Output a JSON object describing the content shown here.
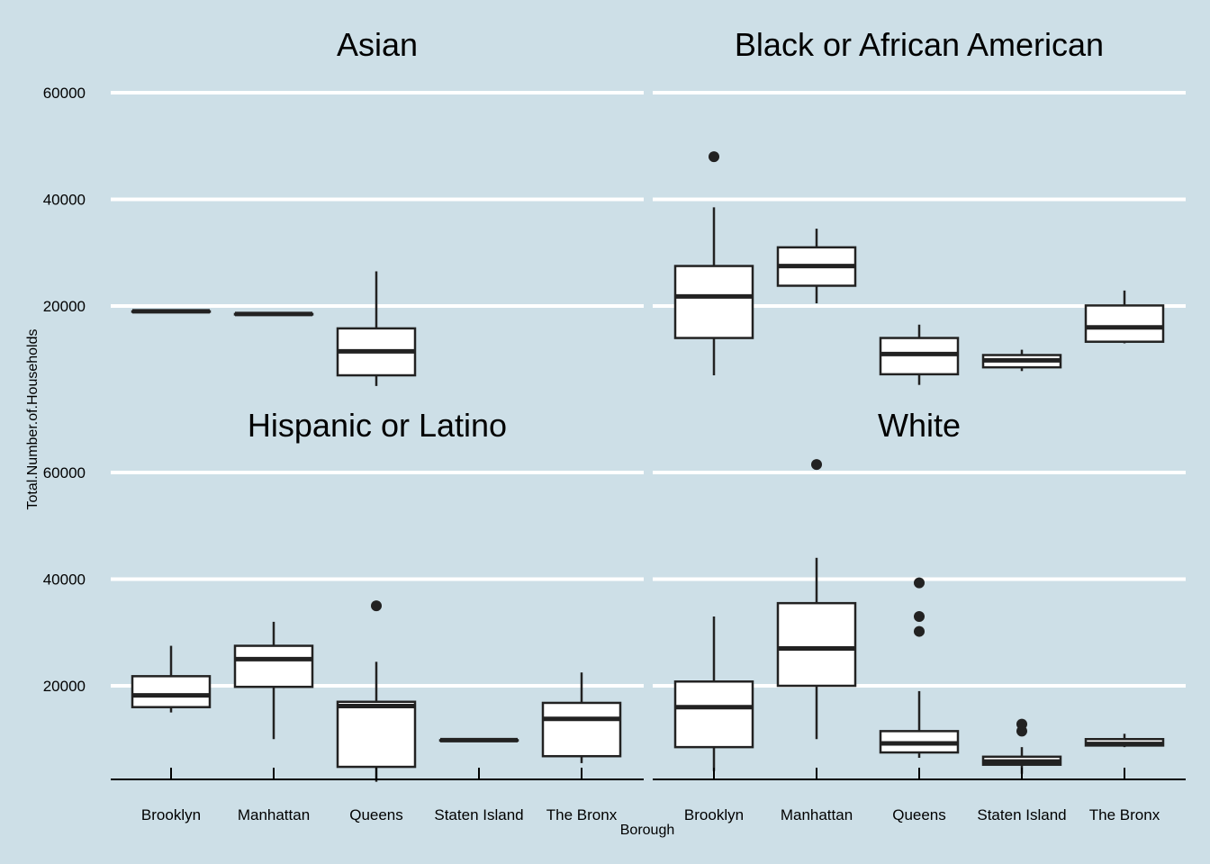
{
  "chart_data": {
    "type": "boxplot",
    "xlabel": "Borough",
    "ylabel": "Total.Number.of.Households",
    "categories": [
      "Brooklyn",
      "Manhattan",
      "Queens",
      "Staten Island",
      "The Bronx"
    ],
    "y_ticks": [
      20000,
      40000,
      60000
    ],
    "y_tick_labels": [
      "20000",
      "40000",
      "60000"
    ],
    "grid": "major y",
    "colors": {
      "background": "#cddfe7",
      "box_fill": "#ffffff",
      "box_stroke": "#222222",
      "grid": "#ffffff"
    },
    "panels": [
      {
        "title": "Asian",
        "boxes": [
          {
            "category": "Brooklyn",
            "min": 19000,
            "q1": 19000,
            "median": 19000,
            "q3": 19000,
            "max": 19000,
            "outliers": []
          },
          {
            "category": "Manhattan",
            "min": 18500,
            "q1": 18500,
            "median": 18500,
            "q3": 18500,
            "max": 18500,
            "outliers": []
          },
          {
            "category": "Queens",
            "min": 5000,
            "q1": 7000,
            "median": 11500,
            "q3": 15800,
            "max": 26500,
            "outliers": []
          }
        ]
      },
      {
        "title": "Black or African American",
        "boxes": [
          {
            "category": "Brooklyn",
            "min": 7000,
            "q1": 14000,
            "median": 21800,
            "q3": 27500,
            "max": 38500,
            "outliers": [
              48000
            ]
          },
          {
            "category": "Manhattan",
            "min": 20500,
            "q1": 23800,
            "median": 27500,
            "q3": 31000,
            "max": 34500,
            "outliers": []
          },
          {
            "category": "Queens",
            "min": 5200,
            "q1": 7200,
            "median": 11000,
            "q3": 14000,
            "max": 16500,
            "outliers": []
          },
          {
            "category": "Staten Island",
            "min": 7800,
            "q1": 8500,
            "median": 9800,
            "q3": 10800,
            "max": 11800,
            "outliers": []
          },
          {
            "category": "The Bronx",
            "min": 13000,
            "q1": 13300,
            "median": 16000,
            "q3": 20100,
            "max": 22900,
            "outliers": []
          }
        ]
      },
      {
        "title": "Hispanic or Latino",
        "boxes": [
          {
            "category": "Brooklyn",
            "min": 15000,
            "q1": 16000,
            "median": 18200,
            "q3": 21800,
            "max": 27500,
            "outliers": []
          },
          {
            "category": "Manhattan",
            "min": 10000,
            "q1": 19800,
            "median": 25000,
            "q3": 27500,
            "max": 32000,
            "outliers": []
          },
          {
            "category": "Queens",
            "min": 2000,
            "q1": 4800,
            "median": 16200,
            "q3": 17000,
            "max": 24500,
            "outliers": [
              35000
            ]
          },
          {
            "category": "Staten Island",
            "min": 9800,
            "q1": 9800,
            "median": 9800,
            "q3": 9800,
            "max": 9800,
            "outliers": []
          },
          {
            "category": "The Bronx",
            "min": 5500,
            "q1": 6800,
            "median": 13800,
            "q3": 16800,
            "max": 22500,
            "outliers": []
          }
        ]
      },
      {
        "title": "White",
        "boxes": [
          {
            "category": "Brooklyn",
            "min": 4000,
            "q1": 8500,
            "median": 16000,
            "q3": 20800,
            "max": 33000,
            "outliers": []
          },
          {
            "category": "Manhattan",
            "min": 10000,
            "q1": 20000,
            "median": 27000,
            "q3": 35500,
            "max": 44000,
            "outliers": [
              61500
            ]
          },
          {
            "category": "Queens",
            "min": 6500,
            "q1": 7500,
            "median": 9200,
            "q3": 11500,
            "max": 19000,
            "outliers": [
              30200,
              33000,
              39300
            ]
          },
          {
            "category": "Staten Island",
            "min": 3500,
            "q1": 5200,
            "median": 5800,
            "q3": 6700,
            "max": 8500,
            "outliers": [
              11500,
              12800
            ]
          },
          {
            "category": "The Bronx",
            "min": 8500,
            "q1": 8800,
            "median": 9100,
            "q3": 10000,
            "max": 11000,
            "outliers": []
          }
        ]
      }
    ]
  }
}
